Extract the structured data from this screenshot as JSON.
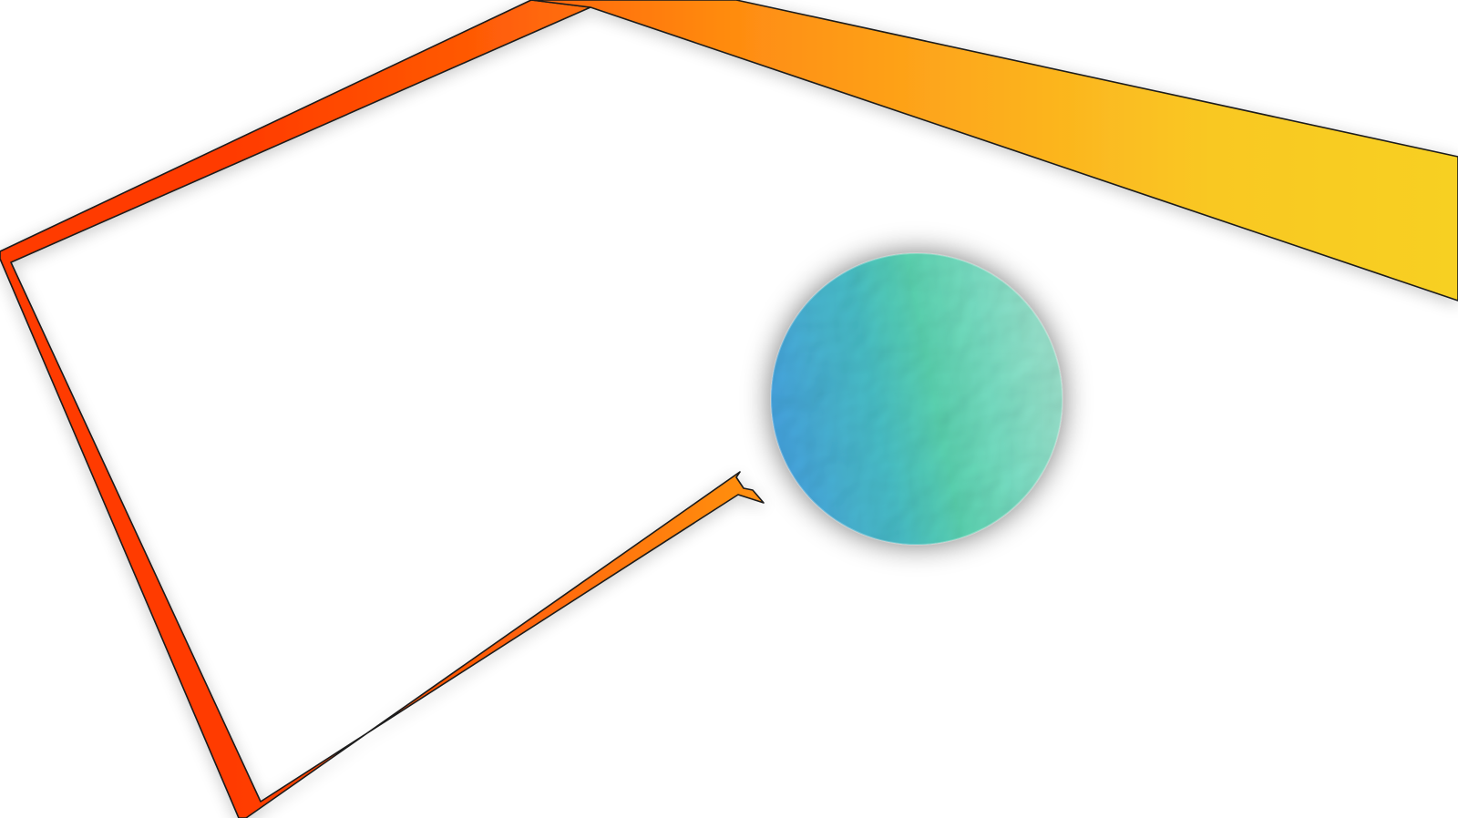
{
  "scene": {
    "background_color": "#ffffff",
    "track": {
      "outline_color": "#1a1a1a",
      "gradient_colors": [
        "#ff3a06",
        "#ff5a06",
        "#ff8a10",
        "#fdaa1c",
        "#f9c823",
        "#f7d024"
      ]
    },
    "ball": {
      "gradient_colors": [
        "#4aaae8",
        "#4cc8d0",
        "#5fdcb8",
        "#7ee8cc",
        "#a6ecd6"
      ],
      "texture": "crumpled-paper",
      "shadow_color": "#6b6b6b"
    }
  }
}
